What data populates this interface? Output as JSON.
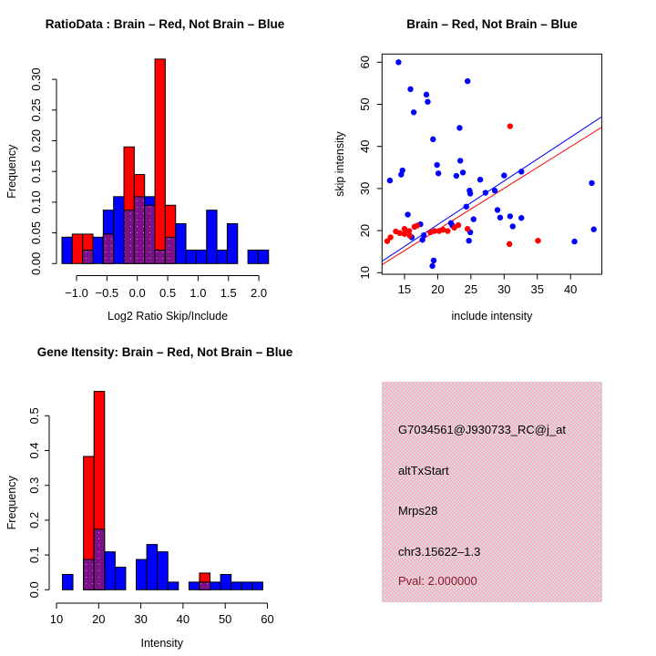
{
  "background": "#ffffff",
  "colors": {
    "brain_red": "#ff0000",
    "not_brain_blue": "#0000ff",
    "overlap_purple": "#7c1189",
    "overlap_dot": "#cf8fae",
    "axis_black": "#000000",
    "info_bg_pink": "#f2c9cf",
    "pval_dark_red": "#8b1a2b"
  },
  "chart_data": [
    {
      "id": "ratio-histogram",
      "type": "bar",
      "title": "RatioData : Brain – Red, Not Brain – Blue",
      "xlabel": "Log2 Ratio Skip/Include",
      "ylabel": "Frequency",
      "legend": "overlaid histograms, purple = overlap of red and blue",
      "bin_start": -1.24,
      "bin_width": 0.17,
      "series": [
        {
          "name": "Not Brain",
          "color": "#0000ff",
          "values": [
            0.043,
            0,
            0.022,
            0.043,
            0.087,
            0.109,
            0.087,
            0.109,
            0.109,
            0.022,
            0.043,
            0.065,
            0.022,
            0.022,
            0.087,
            0.022,
            0.065,
            0,
            0.022,
            0.022
          ]
        },
        {
          "name": "Brain",
          "color": "#ff0000",
          "values": [
            0,
            0.048,
            0.048,
            0,
            0.048,
            0,
            0.19,
            0.145,
            0.095,
            0.333,
            0.095,
            0,
            0,
            0,
            0,
            0,
            0,
            0,
            0,
            0
          ]
        }
      ],
      "xticks": {
        "values": [
          -1.0,
          -0.5,
          0.0,
          0.5,
          1.0,
          1.5,
          2.0
        ],
        "labels": [
          "−1.0",
          "−0.5",
          "0.0",
          "0.5",
          "1.0",
          "1.5",
          "2.0"
        ]
      },
      "yticks": {
        "values": [
          0.0,
          0.05,
          0.1,
          0.15,
          0.2,
          0.25,
          0.3
        ],
        "labels": [
          "0.00",
          "0.05",
          "0.10",
          "0.15",
          "0.20",
          "0.25",
          "0.30"
        ]
      },
      "xlim": [
        -1.45,
        2.35
      ],
      "ylim": [
        0,
        0.345
      ],
      "grid": false
    },
    {
      "id": "intensity-scatter",
      "type": "scatter",
      "title": "Brain – Red, Not Brain – Blue",
      "xlabel": "include intensity",
      "ylabel": "skip intensity",
      "xlim": [
        11.6,
        44.75
      ],
      "ylim": [
        9.6,
        61.9
      ],
      "xticks": {
        "values": [
          15,
          20,
          25,
          30,
          35,
          40
        ],
        "labels": [
          "15",
          "20",
          "25",
          "30",
          "35",
          "40"
        ]
      },
      "yticks": {
        "values": [
          10,
          20,
          30,
          40,
          50,
          60
        ],
        "labels": [
          "10",
          "20",
          "30",
          "40",
          "50",
          "60"
        ]
      },
      "series": [
        {
          "name": "Not Brain",
          "color": "#0000ff",
          "points": [
            [
              14.1,
              60.0
            ],
            [
              24.5,
              55.5
            ],
            [
              15.9,
              53.6
            ],
            [
              18.3,
              52.3
            ],
            [
              18.5,
              50.6
            ],
            [
              16.4,
              48.1
            ],
            [
              23.3,
              44.4
            ],
            [
              19.3,
              41.7
            ],
            [
              23.4,
              36.6
            ],
            [
              19.9,
              35.6
            ],
            [
              20.1,
              33.6
            ],
            [
              23.8,
              33.8
            ],
            [
              14.7,
              34.3
            ],
            [
              14.5,
              33.3
            ],
            [
              12.8,
              31.9
            ],
            [
              30.0,
              33.1
            ],
            [
              32.6,
              34.0
            ],
            [
              22.8,
              33.0
            ],
            [
              26.4,
              32.1
            ],
            [
              43.2,
              31.3
            ],
            [
              24.8,
              29.5
            ],
            [
              24.9,
              28.8
            ],
            [
              27.2,
              29.0
            ],
            [
              28.6,
              29.5
            ],
            [
              24.3,
              25.7
            ],
            [
              29.0,
              24.9
            ],
            [
              29.4,
              23.1
            ],
            [
              15.5,
              23.8
            ],
            [
              30.9,
              23.4
            ],
            [
              32.6,
              23.0
            ],
            [
              25.4,
              22.7
            ],
            [
              17.4,
              21.5
            ],
            [
              22.0,
              21.8
            ],
            [
              22.2,
              21.2
            ],
            [
              31.3,
              21.0
            ],
            [
              43.5,
              20.3
            ],
            [
              24.9,
              19.6
            ],
            [
              16.1,
              18.4
            ],
            [
              17.9,
              18.9
            ],
            [
              17.7,
              17.8
            ],
            [
              24.7,
              17.6
            ],
            [
              40.6,
              17.4
            ],
            [
              19.4,
              12.9
            ],
            [
              19.2,
              11.6
            ]
          ]
        },
        {
          "name": "Brain",
          "color": "#ff0000",
          "points": [
            [
              30.9,
              44.8
            ],
            [
              12.4,
              17.5
            ],
            [
              12.9,
              18.4
            ],
            [
              13.7,
              19.8
            ],
            [
              14.3,
              19.4
            ],
            [
              15.0,
              20.4
            ],
            [
              15.0,
              19.2
            ],
            [
              15.7,
              19.9
            ],
            [
              15.8,
              18.8
            ],
            [
              16.5,
              20.9
            ],
            [
              16.9,
              21.2
            ],
            [
              18.9,
              19.6
            ],
            [
              19.5,
              19.9
            ],
            [
              20.2,
              19.9
            ],
            [
              20.8,
              20.2
            ],
            [
              21.5,
              19.9
            ],
            [
              22.5,
              20.7
            ],
            [
              23.1,
              21.3
            ],
            [
              24.5,
              20.4
            ],
            [
              30.8,
              16.8
            ],
            [
              35.1,
              17.6
            ]
          ]
        }
      ],
      "fit_lines": [
        {
          "name": "not-brain-fit",
          "color": "#0000ff",
          "x1": 11.6,
          "y1": 12.7,
          "x2": 44.75,
          "y2": 47.1
        },
        {
          "name": "brain-fit",
          "color": "#ff0000",
          "x1": 11.6,
          "y1": 11.9,
          "x2": 44.75,
          "y2": 44.6
        }
      ],
      "grid": false
    },
    {
      "id": "gene-intensity-histogram",
      "type": "bar",
      "title": "Gene Itensity: Brain – Red, Not Brain – Blue",
      "xlabel": "Intensity",
      "ylabel": "Frequency",
      "legend": "overlaid histograms, purple = overlap of red and blue",
      "bin_start": 11.4,
      "bin_width": 2.5,
      "series": [
        {
          "name": "Not Brain",
          "color": "#0000ff",
          "values": [
            0.044,
            0,
            0.087,
            0.174,
            0.109,
            0.065,
            0,
            0.087,
            0.13,
            0.109,
            0.022,
            0,
            0.022,
            0.022,
            0.022,
            0.044,
            0.022,
            0.022,
            0.022,
            0
          ]
        },
        {
          "name": "Brain",
          "color": "#ff0000",
          "values": [
            0,
            0,
            0.383,
            0.57,
            0,
            0,
            0,
            0,
            0,
            0,
            0,
            0,
            0,
            0.048,
            0,
            0,
            0,
            0,
            0,
            0
          ]
        }
      ],
      "xticks": {
        "values": [
          10,
          20,
          30,
          40,
          50,
          60
        ],
        "labels": [
          "10",
          "20",
          "30",
          "40",
          "50",
          "60"
        ]
      },
      "yticks": {
        "values": [
          0.0,
          0.1,
          0.2,
          0.3,
          0.4,
          0.5
        ],
        "labels": [
          "0.0",
          "0.1",
          "0.2",
          "0.3",
          "0.4",
          "0.5"
        ]
      },
      "xlim": [
        8.8,
        63.0
      ],
      "ylim": [
        0,
        0.59
      ],
      "grid": false
    }
  ],
  "info_panel": {
    "probe_id": "G7034561@J930733_RC@j_at",
    "event_type": "altTxStart",
    "gene_name": "Mrps28",
    "locus": "chr3.15622–1.3",
    "pval": "Pval: 2.000000"
  }
}
